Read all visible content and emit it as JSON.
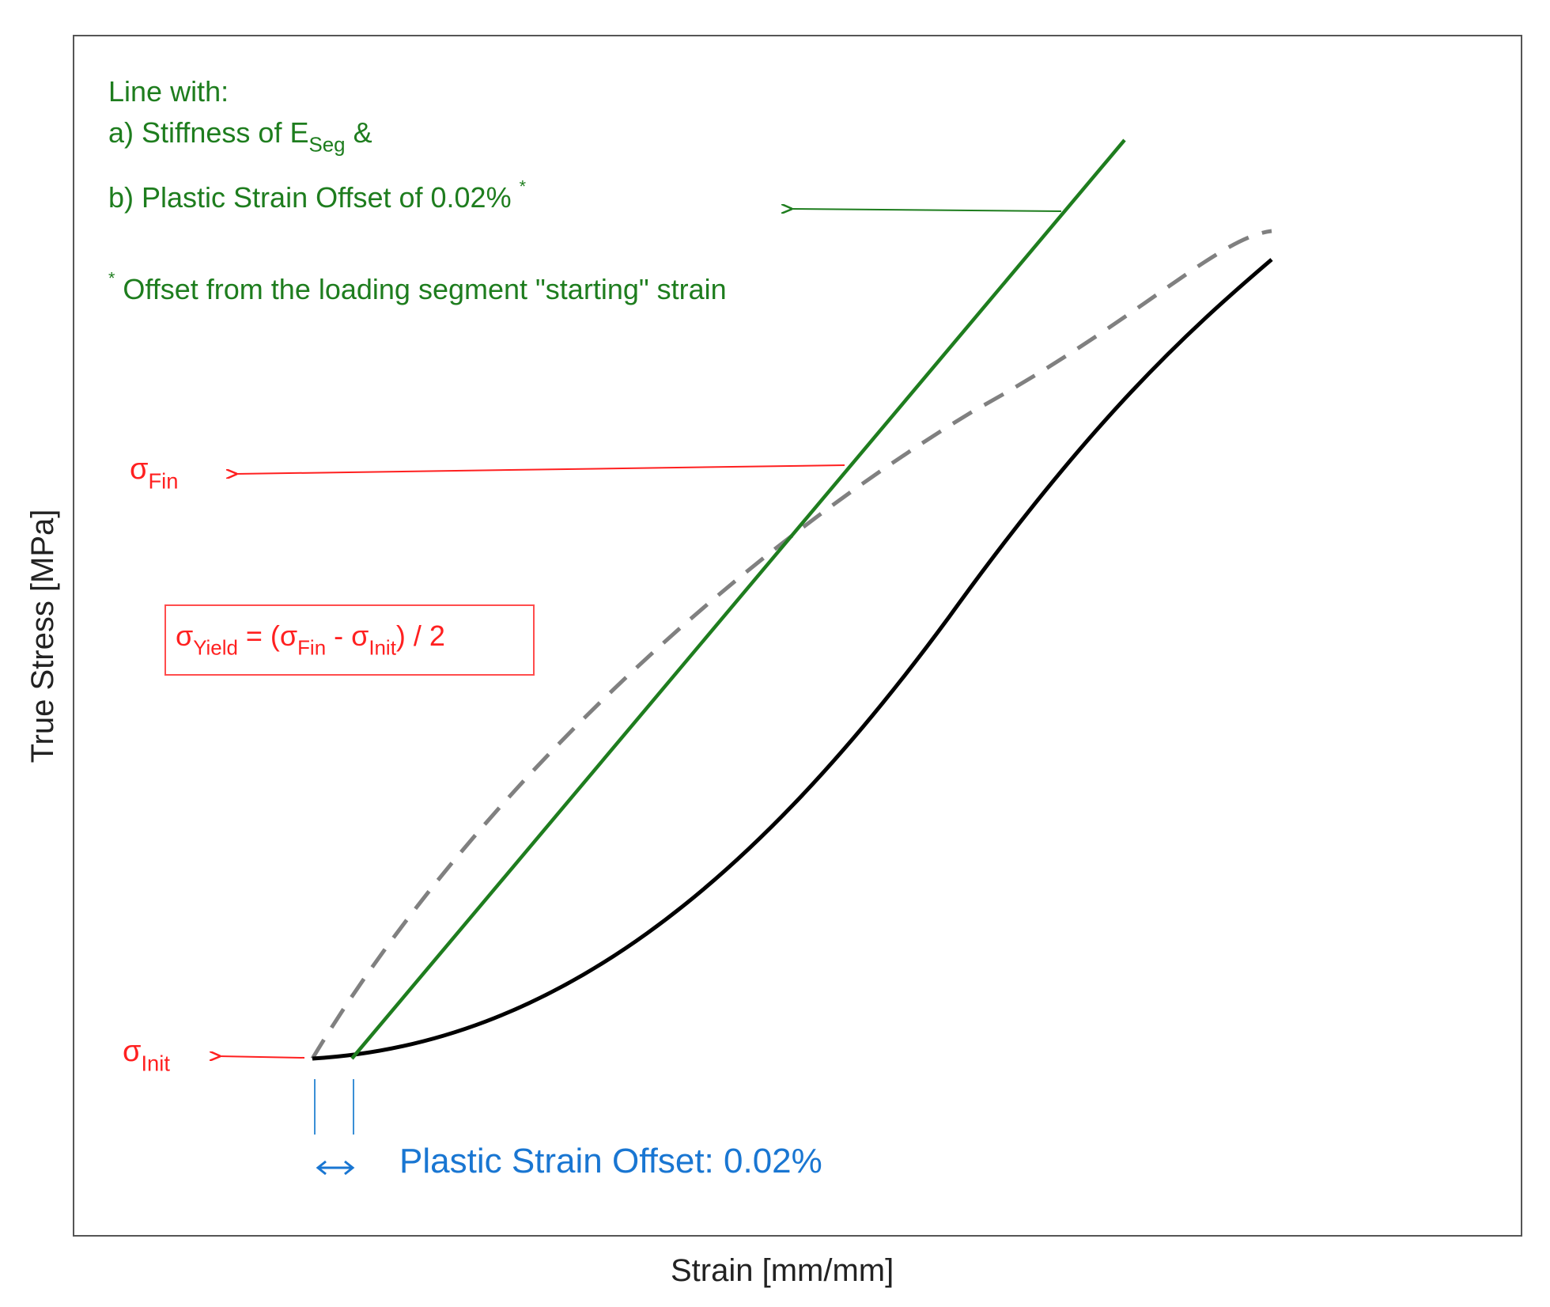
{
  "axes": {
    "x_label": "Strain [mm/mm]",
    "y_label": "True Stress [MPa]"
  },
  "annotations": {
    "line_intro": "Line with:",
    "stiffness_prefix": "a) Stiffness of E",
    "stiffness_sub": "Seg",
    "stiffness_suffix": " &",
    "offset_line": "b) Plastic Strain Offset of 0.02%",
    "offset_star": "*",
    "footnote_star": "*",
    "footnote_text": " Offset from the loading segment \"starting\" strain",
    "sigma": "σ",
    "fin_sub": "Fin",
    "init_sub": "Init",
    "yield_sub": "Yield",
    "yield_eq_mid": " = (",
    "yield_minus": " - ",
    "yield_end": ") / 2",
    "plastic_offset_label": "Plastic Strain Offset: 0.02%"
  },
  "colors": {
    "green": "#1e7d1e",
    "red": "#ff2020",
    "blue": "#1976d2",
    "black_curve": "#000000",
    "dashed_curve": "#808080",
    "frame": "#555555"
  }
}
